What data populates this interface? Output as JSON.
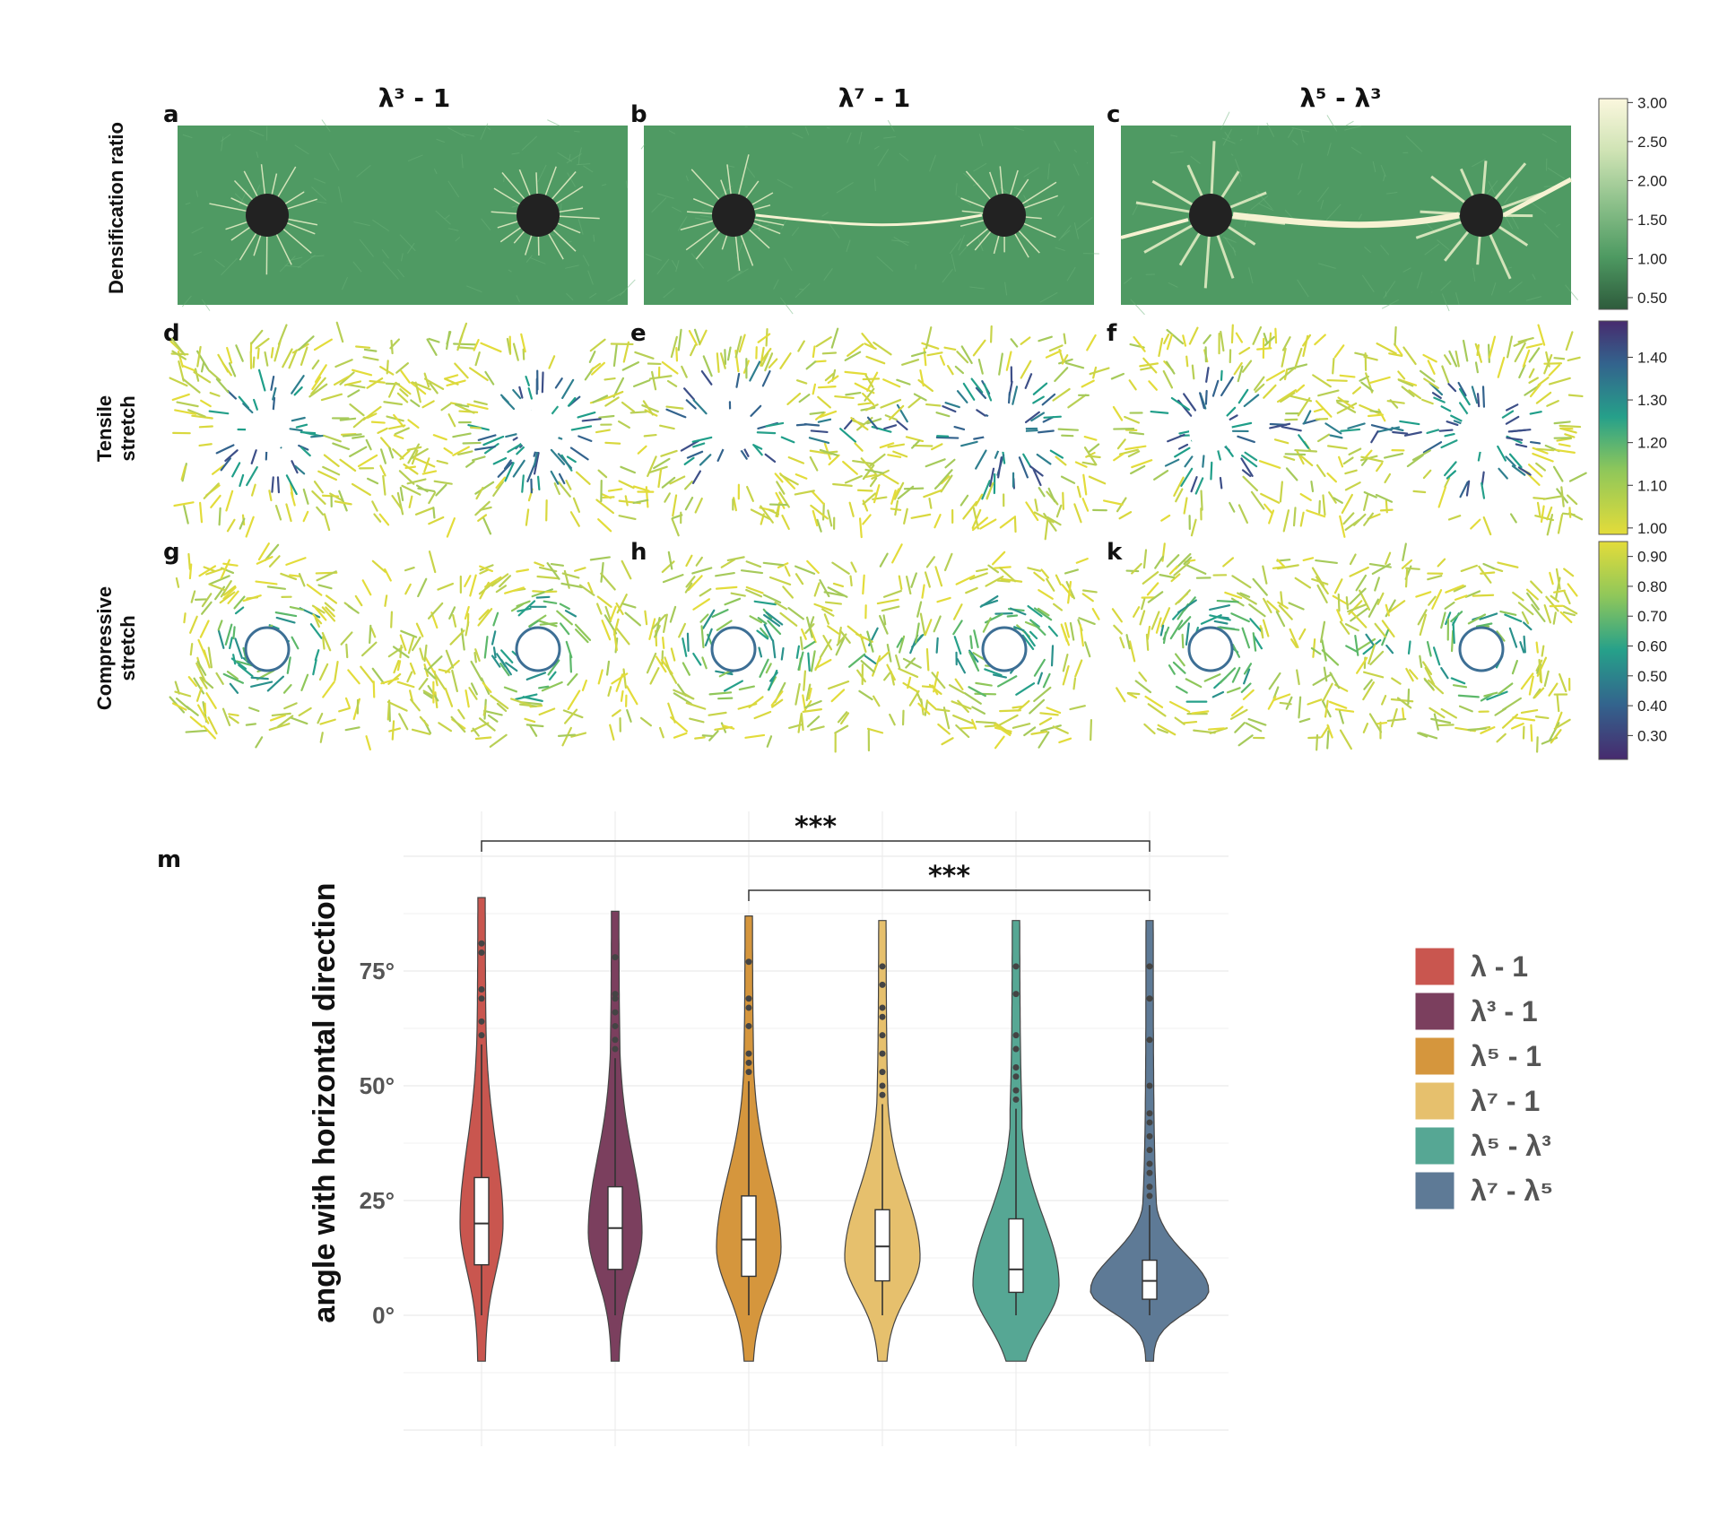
{
  "panels": {
    "col_titles": [
      "λ³ - 1",
      "λ⁷ - 1",
      "λ⁵ - λ³"
    ],
    "row_labels": {
      "densification": "Densification ratio",
      "tensile": [
        "Tensile",
        "stretch"
      ],
      "compressive": [
        "Compressive",
        "stretch"
      ]
    },
    "letters": [
      "a",
      "b",
      "c",
      "d",
      "e",
      "f",
      "g",
      "h",
      "k",
      "m"
    ],
    "colorbars": [
      {
        "name": "densification",
        "ticks": [
          "3.00",
          "2.50",
          "2.00",
          "1.50",
          "1.00",
          "0.50"
        ],
        "values": [
          3.0,
          2.5,
          2.0,
          1.5,
          1.0,
          0.5
        ],
        "range": [
          0.35,
          3.05
        ]
      },
      {
        "name": "tensile",
        "ticks": [
          "1.40",
          "1.30",
          "1.20",
          "1.10",
          "1.00"
        ],
        "values": [
          1.4,
          1.3,
          1.2,
          1.1,
          1.0
        ],
        "range": [
          0.985,
          1.485
        ]
      },
      {
        "name": "compressive",
        "ticks": [
          "0.90",
          "0.80",
          "0.70",
          "0.60",
          "0.50",
          "0.40",
          "0.30"
        ],
        "values": [
          0.9,
          0.8,
          0.7,
          0.6,
          0.5,
          0.4,
          0.3
        ],
        "range": [
          0.22,
          0.95
        ]
      }
    ]
  },
  "chart_data": {
    "type": "violin",
    "ylabel": "angle with horizontal direction",
    "yticks": [
      "0°",
      "25°",
      "50°",
      "75°"
    ],
    "ytick_values": [
      0,
      25,
      50,
      75
    ],
    "ylim": [
      -25,
      100
    ],
    "series": [
      {
        "name": "λ - 1",
        "color": "#c9564f",
        "min": 0,
        "q1": 11,
        "median": 20,
        "q3": 30,
        "max": 59,
        "outliers": [
          61,
          64,
          69,
          71,
          79,
          81
        ]
      },
      {
        "name": "λ³ - 1",
        "color": "#7b3f5e",
        "min": 0,
        "q1": 10,
        "median": 19,
        "q3": 28,
        "max": 56,
        "outliers": [
          58,
          60,
          63,
          66,
          69,
          70,
          78
        ]
      },
      {
        "name": "λ⁵ - 1",
        "color": "#d5963d",
        "min": 0,
        "q1": 8.5,
        "median": 16.5,
        "q3": 26,
        "max": 51,
        "outliers": [
          53,
          55,
          57,
          63,
          67,
          69,
          77
        ]
      },
      {
        "name": "λ⁷ - 1",
        "color": "#e6c06d",
        "min": 0,
        "q1": 7.5,
        "median": 15,
        "q3": 23,
        "max": 46,
        "outliers": [
          48,
          50,
          53,
          57,
          61,
          65,
          67,
          72,
          76
        ]
      },
      {
        "name": "λ⁵ - λ³",
        "color": "#56a794",
        "min": 0,
        "q1": 5,
        "median": 10,
        "q3": 21,
        "max": 45,
        "outliers": [
          47,
          49,
          52,
          54,
          58,
          61,
          70,
          76
        ]
      },
      {
        "name": "λ⁷ - λ⁵",
        "color": "#5e7a96",
        "min": 0,
        "q1": 3.5,
        "median": 7.5,
        "q3": 12,
        "max": 24,
        "outliers": [
          26,
          28,
          31,
          33,
          36,
          39,
          42,
          44,
          50,
          60,
          69,
          76
        ]
      }
    ],
    "significance": [
      {
        "from": "λ - 1",
        "to": "λ⁷ - λ⁵",
        "label": "***"
      },
      {
        "from": "λ⁵ - 1",
        "to": "λ⁷ - λ⁵",
        "label": "***"
      }
    ],
    "legend": [
      "λ - 1",
      "λ³ - 1",
      "λ⁵ - 1",
      "λ⁷ - 1",
      "λ⁵ - λ³",
      "λ⁷ - λ⁵"
    ],
    "legend_position": "right"
  }
}
